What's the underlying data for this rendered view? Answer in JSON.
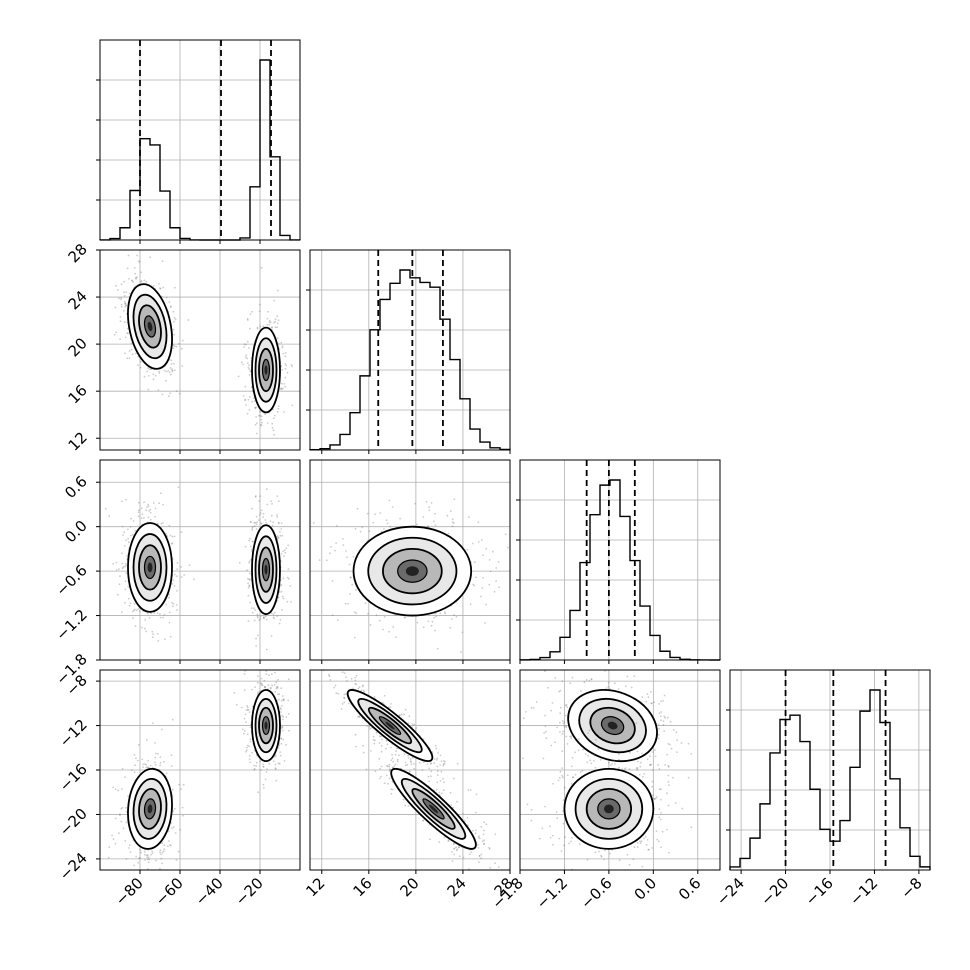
{
  "chart_data": {
    "type": "corner",
    "parameters": [
      "",
      "",
      "",
      ""
    ],
    "colors": {
      "line": "#000000",
      "grid": "#b0b0b0",
      "points": "#6e6e6e"
    },
    "grid": true,
    "params": [
      {
        "range": [
          -100,
          0
        ],
        "ticks": [
          -80,
          -60,
          -40,
          -20
        ],
        "tick_labels": [
          "−80",
          "−60",
          "−40",
          "−20"
        ],
        "quantiles": [
          -80.0,
          -39.5,
          -14.5
        ],
        "modes": [
          {
            "mean": -75,
            "sd": 6,
            "weight": 0.5
          },
          {
            "mean": -17,
            "sd": 3.5,
            "weight": 0.5
          }
        ]
      },
      {
        "range": [
          11,
          28
        ],
        "ticks": [
          12,
          16,
          20,
          24,
          28
        ],
        "tick_labels": [
          "12",
          "16",
          "20",
          "24",
          "28"
        ],
        "quantiles": [
          16.8,
          19.7,
          22.3
        ],
        "modes": [
          {
            "mean": 21.5,
            "sd": 1.8,
            "weight": 0.5
          },
          {
            "mean": 17.8,
            "sd": 1.8,
            "weight": 0.5
          }
        ]
      },
      {
        "range": [
          -1.8,
          0.9
        ],
        "ticks": [
          -1.8,
          -1.2,
          -0.6,
          0.0,
          0.6
        ],
        "tick_labels": [
          "−1.8",
          "−1.2",
          "−0.6",
          "0.0",
          "0.6"
        ],
        "quantiles": [
          -0.9,
          -0.6,
          -0.25
        ],
        "modes": [
          {
            "mean": -0.58,
            "sd": 0.3,
            "weight": 1.0
          }
        ]
      },
      {
        "range": [
          -25,
          -7
        ],
        "ticks": [
          -24,
          -20,
          -16,
          -12,
          -8
        ],
        "tick_labels": [
          "−24",
          "−20",
          "−16",
          "−12",
          "−8"
        ],
        "quantiles": [
          -20.0,
          -15.7,
          -11.0
        ],
        "modes": [
          {
            "mean": -19.5,
            "sd": 1.8,
            "weight": 0.5
          },
          {
            "mean": -12.0,
            "sd": 1.6,
            "weight": 0.5
          }
        ]
      }
    ],
    "pairs": [
      {
        "row": 1,
        "col": 0,
        "clusters": [
          {
            "x": -75,
            "y": 21.5,
            "sx": 5.5,
            "sy": 1.8,
            "rho": -0.3
          },
          {
            "x": -17,
            "y": 17.8,
            "sx": 3.5,
            "sy": 1.8,
            "rho": 0.0
          }
        ]
      },
      {
        "row": 2,
        "col": 0,
        "clusters": [
          {
            "x": -75,
            "y": -0.55,
            "sx": 5.5,
            "sy": 0.3,
            "rho": 0.0
          },
          {
            "x": -17,
            "y": -0.58,
            "sx": 3.5,
            "sy": 0.3,
            "rho": 0.0
          }
        ]
      },
      {
        "row": 2,
        "col": 1,
        "clusters": [
          {
            "x": 19.7,
            "y": -0.6,
            "sx": 2.5,
            "sy": 0.3,
            "rho": 0.0
          }
        ]
      },
      {
        "row": 3,
        "col": 0,
        "clusters": [
          {
            "x": -75,
            "y": -19.5,
            "sx": 5.5,
            "sy": 1.8,
            "rho": 0.1
          },
          {
            "x": -17,
            "y": -12.0,
            "sx": 3.5,
            "sy": 1.6,
            "rho": 0.0
          }
        ]
      },
      {
        "row": 3,
        "col": 1,
        "clusters": [
          {
            "x": 17.8,
            "y": -12.0,
            "sx": 1.8,
            "sy": 1.6,
            "rho": -0.9
          },
          {
            "x": 21.5,
            "y": -19.5,
            "sx": 1.8,
            "sy": 1.8,
            "rho": -0.9
          }
        ]
      },
      {
        "row": 3,
        "col": 2,
        "clusters": [
          {
            "x": -0.55,
            "y": -12.0,
            "sx": 0.3,
            "sy": 1.6,
            "rho": -0.2
          },
          {
            "x": -0.6,
            "y": -19.5,
            "sx": 0.3,
            "sy": 1.8,
            "rho": 0.0
          }
        ]
      }
    ]
  }
}
